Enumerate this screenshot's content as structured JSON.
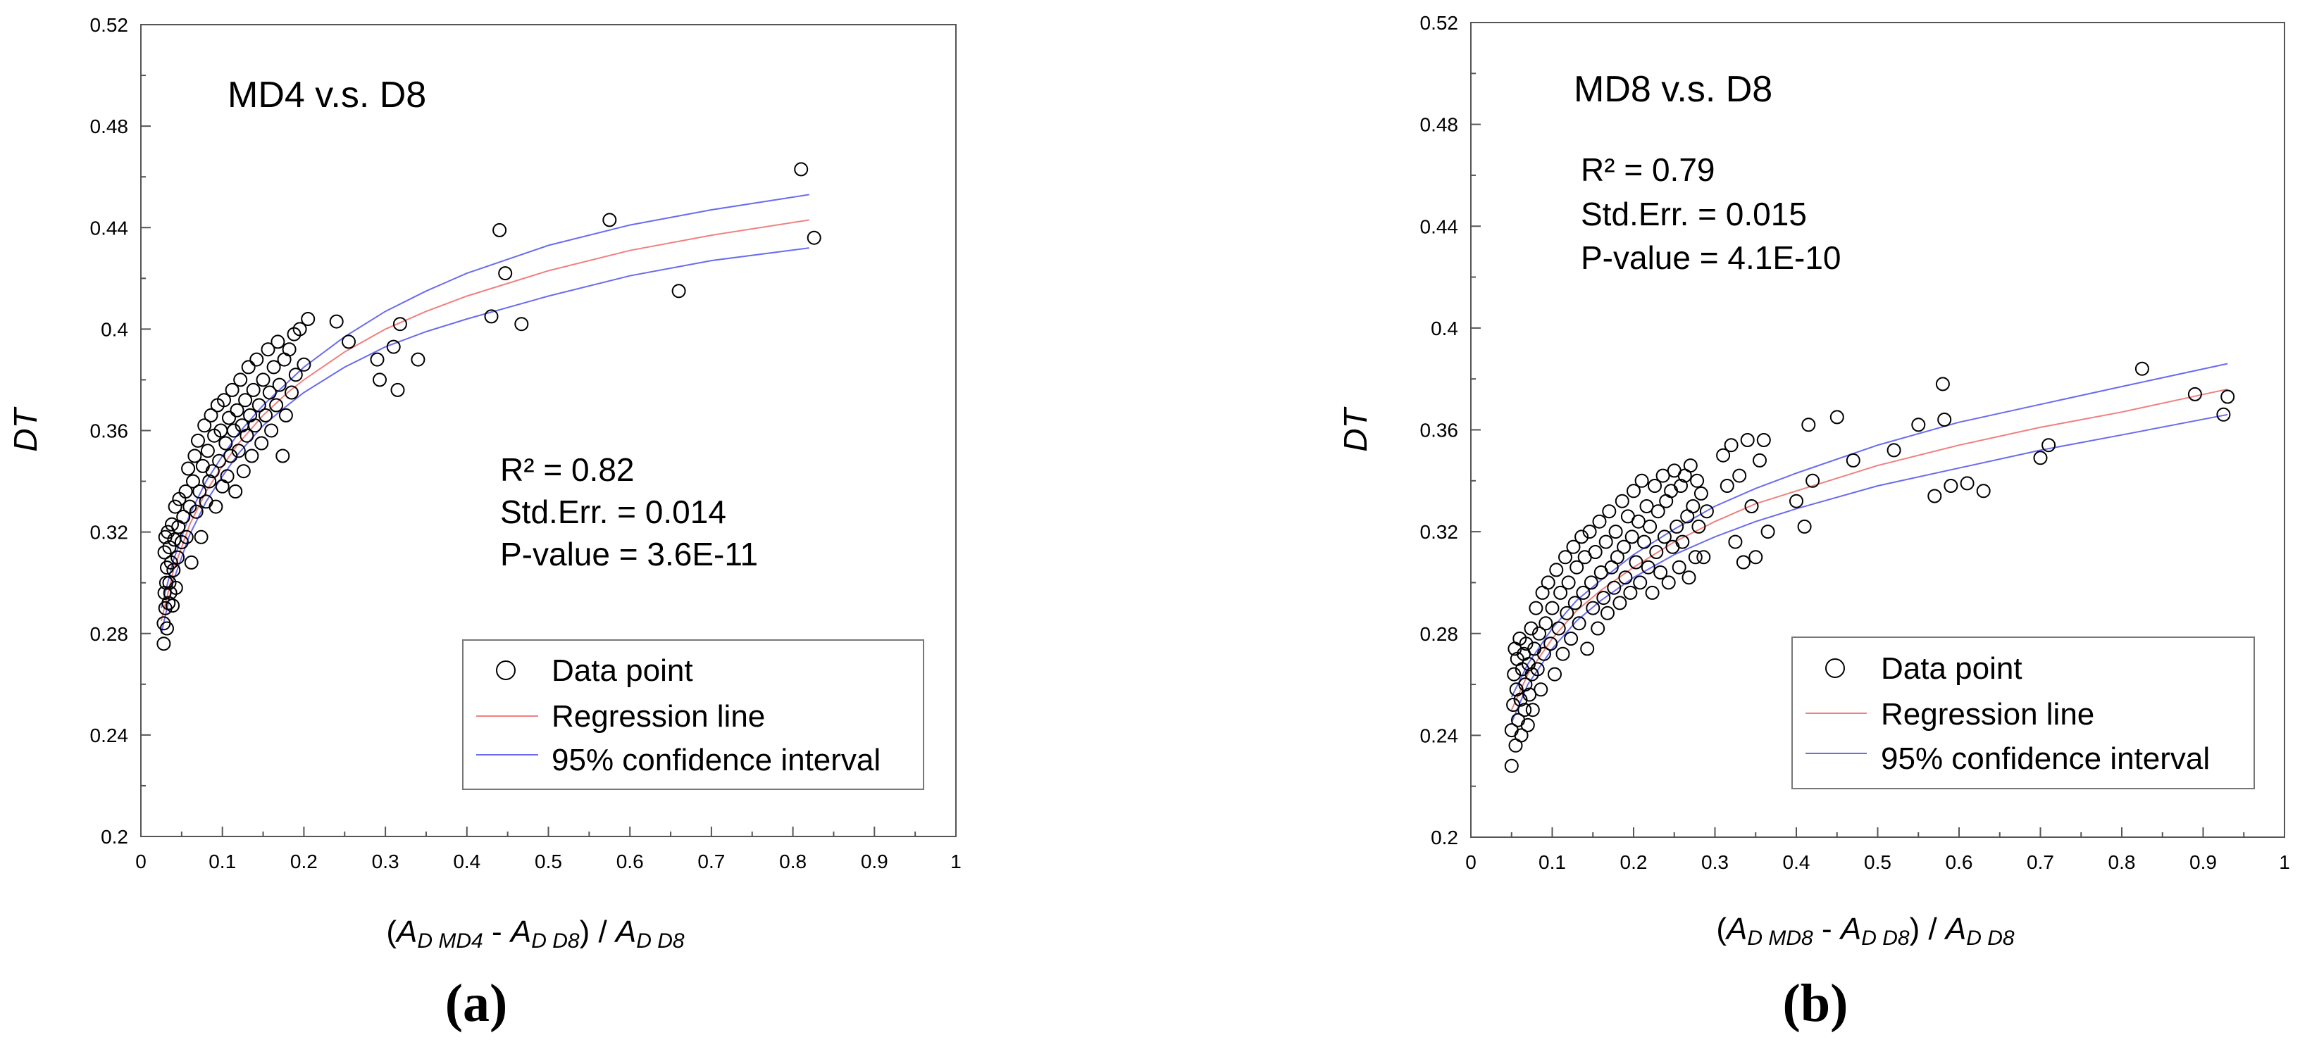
{
  "figure": {
    "panels": [
      {
        "caption": "(a)",
        "title": "MD4 v.s. D8",
        "stats": {
          "r2": "R² = 0.82",
          "std_err": "Std.Err. = 0.014",
          "p_value": "P-value = 3.6E-11"
        },
        "xlabel": {
          "open": "(",
          "a1": "A",
          "s1": "D MD4",
          "mid": " - ",
          "a2": "A",
          "s2": "D D8",
          "close": ") / ",
          "a3": "A",
          "s3": "D D8"
        },
        "legend": {
          "points": "Data point",
          "regression": "Regression line",
          "ci": "95% confidence interval"
        }
      },
      {
        "caption": "(b)",
        "title": "MD8 v.s. D8",
        "stats": {
          "r2": "R² = 0.79",
          "std_err": "Std.Err. = 0.015",
          "p_value": "P-value = 4.1E-10"
        },
        "xlabel": {
          "open": "(",
          "a1": "A",
          "s1": "D MD8",
          "mid": " - ",
          "a2": "A",
          "s2": "D D8",
          "close": ") / ",
          "a3": "A",
          "s3": "D D8"
        },
        "legend": {
          "points": "Data point",
          "regression": "Regression line",
          "ci": "95% confidence interval"
        }
      }
    ]
  },
  "chart_data": [
    {
      "type": "scatter",
      "title": "MD4 v.s. D8",
      "xlabel": "(A_D MD4 - A_D D8) / A_D D8",
      "ylabel": "DT",
      "xlim": [
        0,
        1
      ],
      "ylim": [
        0.2,
        0.52
      ],
      "xticks": [
        "0",
        "0.1",
        "0.2",
        "0.3",
        "0.4",
        "0.5",
        "0.6",
        "0.7",
        "0.8",
        "0.9",
        "1"
      ],
      "yticks": [
        "0.2",
        "0.24",
        "0.28",
        "0.32",
        "0.36",
        "0.4",
        "0.44",
        "0.48",
        "0.52"
      ],
      "colors": {
        "regression": "#f08080",
        "ci": "#6b6bf0",
        "points": "#000000"
      },
      "regression": {
        "x": [
          0.025,
          0.04,
          0.06,
          0.08,
          0.1,
          0.12,
          0.15,
          0.18,
          0.2,
          0.25,
          0.3,
          0.35,
          0.4,
          0.5,
          0.6,
          0.7,
          0.82
        ],
        "y": [
          0.285,
          0.305,
          0.323,
          0.336,
          0.346,
          0.355,
          0.366,
          0.375,
          0.38,
          0.391,
          0.4,
          0.407,
          0.413,
          0.423,
          0.431,
          0.437,
          0.443
        ]
      },
      "ci_upper": {
        "x": [
          0.025,
          0.04,
          0.06,
          0.08,
          0.1,
          0.12,
          0.15,
          0.18,
          0.2,
          0.25,
          0.3,
          0.35,
          0.4,
          0.5,
          0.6,
          0.7,
          0.82
        ],
        "y": [
          0.29,
          0.309,
          0.327,
          0.34,
          0.35,
          0.359,
          0.37,
          0.379,
          0.385,
          0.397,
          0.407,
          0.415,
          0.422,
          0.433,
          0.441,
          0.447,
          0.453
        ]
      },
      "ci_lower": {
        "x": [
          0.025,
          0.04,
          0.06,
          0.08,
          0.1,
          0.12,
          0.15,
          0.18,
          0.2,
          0.25,
          0.3,
          0.35,
          0.4,
          0.5,
          0.6,
          0.7,
          0.82
        ],
        "y": [
          0.28,
          0.301,
          0.319,
          0.332,
          0.342,
          0.351,
          0.362,
          0.37,
          0.375,
          0.385,
          0.393,
          0.399,
          0.404,
          0.413,
          0.421,
          0.427,
          0.432
        ]
      },
      "points": [
        [
          0.028,
          0.276
        ],
        [
          0.028,
          0.284
        ],
        [
          0.029,
          0.296
        ],
        [
          0.029,
          0.312
        ],
        [
          0.03,
          0.29
        ],
        [
          0.03,
          0.318
        ],
        [
          0.031,
          0.3
        ],
        [
          0.032,
          0.282
        ],
        [
          0.032,
          0.306
        ],
        [
          0.033,
          0.32
        ],
        [
          0.034,
          0.292
        ],
        [
          0.035,
          0.3
        ],
        [
          0.035,
          0.314
        ],
        [
          0.036,
          0.296
        ],
        [
          0.037,
          0.308
        ],
        [
          0.038,
          0.323
        ],
        [
          0.039,
          0.291
        ],
        [
          0.04,
          0.305
        ],
        [
          0.041,
          0.317
        ],
        [
          0.042,
          0.33
        ],
        [
          0.043,
          0.298
        ],
        [
          0.045,
          0.31
        ],
        [
          0.046,
          0.322
        ],
        [
          0.047,
          0.333
        ],
        [
          0.05,
          0.316
        ],
        [
          0.052,
          0.326
        ],
        [
          0.055,
          0.336
        ],
        [
          0.056,
          0.318
        ],
        [
          0.058,
          0.345
        ],
        [
          0.06,
          0.33
        ],
        [
          0.062,
          0.308
        ],
        [
          0.064,
          0.34
        ],
        [
          0.066,
          0.35
        ],
        [
          0.068,
          0.328
        ],
        [
          0.07,
          0.356
        ],
        [
          0.072,
          0.336
        ],
        [
          0.074,
          0.318
        ],
        [
          0.076,
          0.346
        ],
        [
          0.078,
          0.362
        ],
        [
          0.08,
          0.332
        ],
        [
          0.082,
          0.352
        ],
        [
          0.084,
          0.34
        ],
        [
          0.086,
          0.366
        ],
        [
          0.088,
          0.344
        ],
        [
          0.09,
          0.358
        ],
        [
          0.092,
          0.33
        ],
        [
          0.094,
          0.37
        ],
        [
          0.096,
          0.348
        ],
        [
          0.098,
          0.36
        ],
        [
          0.1,
          0.338
        ],
        [
          0.102,
          0.372
        ],
        [
          0.104,
          0.355
        ],
        [
          0.106,
          0.342
        ],
        [
          0.108,
          0.365
        ],
        [
          0.11,
          0.35
        ],
        [
          0.112,
          0.376
        ],
        [
          0.114,
          0.36
        ],
        [
          0.116,
          0.336
        ],
        [
          0.118,
          0.368
        ],
        [
          0.12,
          0.352
        ],
        [
          0.122,
          0.38
        ],
        [
          0.124,
          0.362
        ],
        [
          0.126,
          0.344
        ],
        [
          0.128,
          0.372
        ],
        [
          0.13,
          0.358
        ],
        [
          0.132,
          0.385
        ],
        [
          0.134,
          0.366
        ],
        [
          0.136,
          0.35
        ],
        [
          0.138,
          0.376
        ],
        [
          0.14,
          0.362
        ],
        [
          0.142,
          0.388
        ],
        [
          0.145,
          0.37
        ],
        [
          0.148,
          0.355
        ],
        [
          0.15,
          0.38
        ],
        [
          0.153,
          0.366
        ],
        [
          0.156,
          0.392
        ],
        [
          0.158,
          0.375
        ],
        [
          0.16,
          0.36
        ],
        [
          0.163,
          0.385
        ],
        [
          0.166,
          0.37
        ],
        [
          0.168,
          0.395
        ],
        [
          0.17,
          0.378
        ],
        [
          0.174,
          0.35
        ],
        [
          0.176,
          0.388
        ],
        [
          0.178,
          0.366
        ],
        [
          0.182,
          0.392
        ],
        [
          0.185,
          0.375
        ],
        [
          0.188,
          0.398
        ],
        [
          0.19,
          0.382
        ],
        [
          0.195,
          0.4
        ],
        [
          0.2,
          0.386
        ],
        [
          0.205,
          0.404
        ],
        [
          0.24,
          0.403
        ],
        [
          0.255,
          0.395
        ],
        [
          0.29,
          0.388
        ],
        [
          0.293,
          0.38
        ],
        [
          0.31,
          0.393
        ],
        [
          0.315,
          0.376
        ],
        [
          0.318,
          0.402
        ],
        [
          0.34,
          0.388
        ],
        [
          0.43,
          0.405
        ],
        [
          0.44,
          0.439
        ],
        [
          0.447,
          0.422
        ],
        [
          0.467,
          0.402
        ],
        [
          0.575,
          0.443
        ],
        [
          0.66,
          0.415
        ],
        [
          0.81,
          0.463
        ],
        [
          0.826,
          0.436
        ]
      ]
    },
    {
      "type": "scatter",
      "title": "MD8 v.s. D8",
      "xlabel": "(A_D MD8 - A_D D8) / A_D D8",
      "ylabel": "DT",
      "xlim": [
        0,
        1
      ],
      "ylim": [
        0.2,
        0.52
      ],
      "xticks": [
        "0",
        "0.1",
        "0.2",
        "0.3",
        "0.4",
        "0.5",
        "0.6",
        "0.7",
        "0.8",
        "0.9",
        "1"
      ],
      "yticks": [
        "0.2",
        "0.24",
        "0.28",
        "0.32",
        "0.36",
        "0.4",
        "0.44",
        "0.48",
        "0.52"
      ],
      "colors": {
        "regression": "#f08080",
        "ci": "#6b6bf0",
        "points": "#000000"
      },
      "regression": {
        "x": [
          0.05,
          0.07,
          0.1,
          0.13,
          0.16,
          0.2,
          0.25,
          0.3,
          0.35,
          0.4,
          0.5,
          0.6,
          0.7,
          0.8,
          0.93
        ],
        "y": [
          0.25,
          0.264,
          0.278,
          0.289,
          0.297,
          0.306,
          0.316,
          0.324,
          0.331,
          0.336,
          0.346,
          0.354,
          0.361,
          0.367,
          0.376
        ]
      },
      "ci_upper": {
        "x": [
          0.05,
          0.07,
          0.1,
          0.13,
          0.16,
          0.2,
          0.25,
          0.3,
          0.35,
          0.4,
          0.5,
          0.6,
          0.7,
          0.8,
          0.93
        ],
        "y": [
          0.255,
          0.268,
          0.282,
          0.293,
          0.301,
          0.311,
          0.321,
          0.33,
          0.337,
          0.343,
          0.354,
          0.363,
          0.37,
          0.377,
          0.386
        ]
      },
      "ci_lower": {
        "x": [
          0.05,
          0.07,
          0.1,
          0.13,
          0.16,
          0.2,
          0.25,
          0.3,
          0.35,
          0.4,
          0.5,
          0.6,
          0.7,
          0.8,
          0.93
        ],
        "y": [
          0.245,
          0.26,
          0.274,
          0.285,
          0.293,
          0.302,
          0.311,
          0.318,
          0.324,
          0.329,
          0.338,
          0.345,
          0.352,
          0.358,
          0.366
        ]
      },
      "points": [
        [
          0.05,
          0.228
        ],
        [
          0.05,
          0.242
        ],
        [
          0.052,
          0.252
        ],
        [
          0.053,
          0.264
        ],
        [
          0.054,
          0.274
        ],
        [
          0.055,
          0.236
        ],
        [
          0.056,
          0.258
        ],
        [
          0.057,
          0.27
        ],
        [
          0.058,
          0.246
        ],
        [
          0.06,
          0.278
        ],
        [
          0.061,
          0.254
        ],
        [
          0.062,
          0.24
        ],
        [
          0.063,
          0.266
        ],
        [
          0.065,
          0.272
        ],
        [
          0.066,
          0.25
        ],
        [
          0.067,
          0.26
        ],
        [
          0.068,
          0.276
        ],
        [
          0.07,
          0.244
        ],
        [
          0.071,
          0.268
        ],
        [
          0.072,
          0.256
        ],
        [
          0.074,
          0.282
        ],
        [
          0.075,
          0.264
        ],
        [
          0.076,
          0.25
        ],
        [
          0.078,
          0.274
        ],
        [
          0.08,
          0.29
        ],
        [
          0.082,
          0.266
        ],
        [
          0.084,
          0.28
        ],
        [
          0.086,
          0.258
        ],
        [
          0.088,
          0.296
        ],
        [
          0.09,
          0.272
        ],
        [
          0.092,
          0.284
        ],
        [
          0.095,
          0.3
        ],
        [
          0.098,
          0.276
        ],
        [
          0.1,
          0.29
        ],
        [
          0.103,
          0.264
        ],
        [
          0.105,
          0.305
        ],
        [
          0.108,
          0.282
        ],
        [
          0.11,
          0.296
        ],
        [
          0.113,
          0.272
        ],
        [
          0.116,
          0.31
        ],
        [
          0.118,
          0.288
        ],
        [
          0.12,
          0.3
        ],
        [
          0.123,
          0.278
        ],
        [
          0.126,
          0.314
        ],
        [
          0.128,
          0.292
        ],
        [
          0.13,
          0.306
        ],
        [
          0.133,
          0.284
        ],
        [
          0.136,
          0.318
        ],
        [
          0.138,
          0.296
        ],
        [
          0.14,
          0.31
        ],
        [
          0.143,
          0.274
        ],
        [
          0.146,
          0.32
        ],
        [
          0.148,
          0.3
        ],
        [
          0.15,
          0.29
        ],
        [
          0.153,
          0.312
        ],
        [
          0.156,
          0.282
        ],
        [
          0.158,
          0.324
        ],
        [
          0.16,
          0.304
        ],
        [
          0.163,
          0.294
        ],
        [
          0.166,
          0.316
        ],
        [
          0.168,
          0.288
        ],
        [
          0.17,
          0.328
        ],
        [
          0.173,
          0.306
        ],
        [
          0.176,
          0.298
        ],
        [
          0.178,
          0.32
        ],
        [
          0.18,
          0.31
        ],
        [
          0.183,
          0.292
        ],
        [
          0.186,
          0.332
        ],
        [
          0.188,
          0.314
        ],
        [
          0.19,
          0.302
        ],
        [
          0.193,
          0.326
        ],
        [
          0.196,
          0.296
        ],
        [
          0.198,
          0.318
        ],
        [
          0.2,
          0.336
        ],
        [
          0.203,
          0.308
        ],
        [
          0.206,
          0.324
        ],
        [
          0.208,
          0.3
        ],
        [
          0.21,
          0.34
        ],
        [
          0.213,
          0.316
        ],
        [
          0.216,
          0.33
        ],
        [
          0.218,
          0.306
        ],
        [
          0.22,
          0.322
        ],
        [
          0.223,
          0.296
        ],
        [
          0.226,
          0.338
        ],
        [
          0.228,
          0.312
        ],
        [
          0.23,
          0.328
        ],
        [
          0.233,
          0.304
        ],
        [
          0.236,
          0.342
        ],
        [
          0.238,
          0.318
        ],
        [
          0.24,
          0.332
        ],
        [
          0.243,
          0.3
        ],
        [
          0.246,
          0.336
        ],
        [
          0.248,
          0.314
        ],
        [
          0.25,
          0.344
        ],
        [
          0.253,
          0.322
        ],
        [
          0.256,
          0.306
        ],
        [
          0.258,
          0.338
        ],
        [
          0.26,
          0.316
        ],
        [
          0.263,
          0.342
        ],
        [
          0.266,
          0.326
        ],
        [
          0.268,
          0.302
        ],
        [
          0.27,
          0.346
        ],
        [
          0.273,
          0.33
        ],
        [
          0.276,
          0.31
        ],
        [
          0.278,
          0.34
        ],
        [
          0.28,
          0.322
        ],
        [
          0.283,
          0.335
        ],
        [
          0.286,
          0.31
        ],
        [
          0.29,
          0.328
        ],
        [
          0.31,
          0.35
        ],
        [
          0.315,
          0.338
        ],
        [
          0.32,
          0.354
        ],
        [
          0.325,
          0.316
        ],
        [
          0.33,
          0.342
        ],
        [
          0.335,
          0.308
        ],
        [
          0.34,
          0.356
        ],
        [
          0.345,
          0.33
        ],
        [
          0.35,
          0.31
        ],
        [
          0.355,
          0.348
        ],
        [
          0.36,
          0.356
        ],
        [
          0.365,
          0.32
        ],
        [
          0.4,
          0.332
        ],
        [
          0.41,
          0.322
        ],
        [
          0.415,
          0.362
        ],
        [
          0.42,
          0.34
        ],
        [
          0.45,
          0.365
        ],
        [
          0.47,
          0.348
        ],
        [
          0.52,
          0.352
        ],
        [
          0.55,
          0.362
        ],
        [
          0.57,
          0.334
        ],
        [
          0.58,
          0.378
        ],
        [
          0.582,
          0.364
        ],
        [
          0.59,
          0.338
        ],
        [
          0.61,
          0.339
        ],
        [
          0.63,
          0.336
        ],
        [
          0.7,
          0.349
        ],
        [
          0.71,
          0.354
        ],
        [
          0.825,
          0.384
        ],
        [
          0.89,
          0.374
        ],
        [
          0.925,
          0.366
        ],
        [
          0.93,
          0.373
        ]
      ]
    }
  ]
}
